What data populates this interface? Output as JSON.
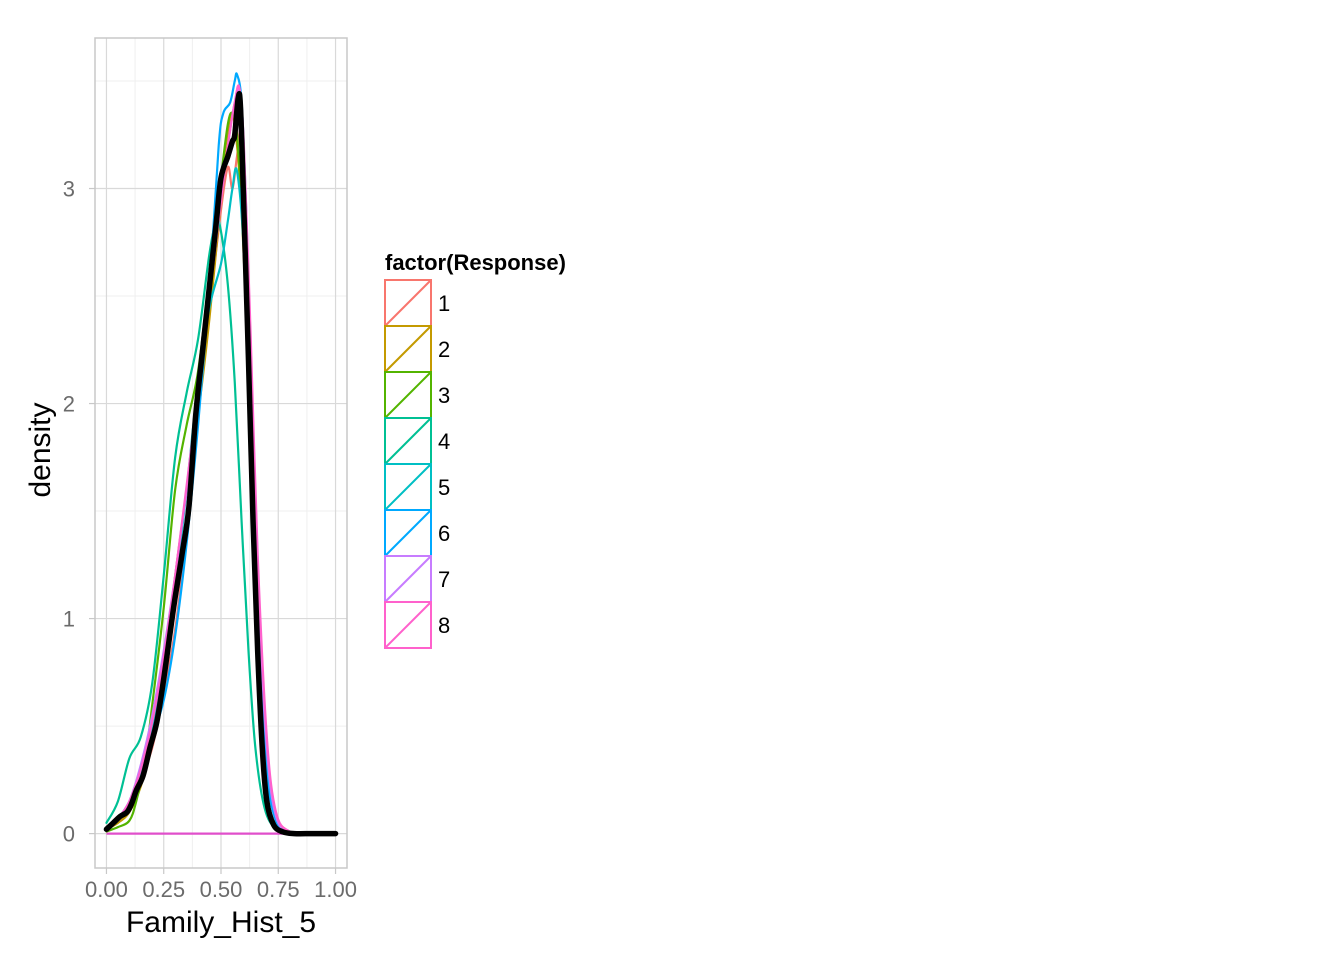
{
  "chart_data": {
    "type": "line",
    "title": "",
    "xlabel": "Family_Hist_5",
    "ylabel": "density",
    "xlim": [
      -0.05,
      1.05
    ],
    "ylim": [
      -0.16,
      3.7
    ],
    "x_ticks": [
      {
        "value": 0.0,
        "label": "0.00"
      },
      {
        "value": 0.25,
        "label": "0.25"
      },
      {
        "value": 0.5,
        "label": "0.50"
      },
      {
        "value": 0.75,
        "label": "0.75"
      },
      {
        "value": 1.0,
        "label": "1.00"
      }
    ],
    "y_ticks": [
      {
        "value": 0,
        "label": "0"
      },
      {
        "value": 1,
        "label": "1"
      },
      {
        "value": 2,
        "label": "2"
      },
      {
        "value": 3,
        "label": "3"
      }
    ],
    "grid": true,
    "legend": {
      "title": "factor(Response)",
      "placement": "right"
    },
    "series": [
      {
        "name": "1",
        "color": "#F8766D",
        "width": 2.2,
        "points": [
          [
            0.0,
            0.02
          ],
          [
            0.05,
            0.06
          ],
          [
            0.1,
            0.12
          ],
          [
            0.15,
            0.25
          ],
          [
            0.2,
            0.4
          ],
          [
            0.25,
            0.65
          ],
          [
            0.3,
            0.95
          ],
          [
            0.35,
            1.4
          ],
          [
            0.4,
            1.95
          ],
          [
            0.45,
            2.45
          ],
          [
            0.5,
            2.9
          ],
          [
            0.53,
            3.1
          ],
          [
            0.55,
            3.0
          ],
          [
            0.57,
            3.15
          ],
          [
            0.59,
            3.25
          ],
          [
            0.61,
            2.6
          ],
          [
            0.64,
            1.7
          ],
          [
            0.67,
            0.9
          ],
          [
            0.7,
            0.3
          ],
          [
            0.74,
            0.06
          ],
          [
            0.8,
            0.005
          ],
          [
            0.9,
            0.0
          ],
          [
            1.0,
            0.0
          ]
        ]
      },
      {
        "name": "2",
        "color": "#C49A00",
        "width": 2.2,
        "points": [
          [
            0.0,
            0.02
          ],
          [
            0.05,
            0.05
          ],
          [
            0.1,
            0.1
          ],
          [
            0.15,
            0.22
          ],
          [
            0.2,
            0.42
          ],
          [
            0.25,
            0.75
          ],
          [
            0.3,
            1.2
          ],
          [
            0.35,
            1.6
          ],
          [
            0.4,
            1.95
          ],
          [
            0.45,
            2.4
          ],
          [
            0.5,
            2.95
          ],
          [
            0.53,
            3.25
          ],
          [
            0.55,
            3.35
          ],
          [
            0.57,
            3.2
          ],
          [
            0.59,
            2.9
          ],
          [
            0.62,
            2.2
          ],
          [
            0.65,
            1.3
          ],
          [
            0.68,
            0.6
          ],
          [
            0.72,
            0.15
          ],
          [
            0.78,
            0.02
          ],
          [
            0.9,
            0.0
          ],
          [
            1.0,
            0.0
          ]
        ]
      },
      {
        "name": "3",
        "color": "#53B400",
        "width": 2.2,
        "points": [
          [
            0.0,
            0.01
          ],
          [
            0.05,
            0.03
          ],
          [
            0.1,
            0.06
          ],
          [
            0.13,
            0.15
          ],
          [
            0.17,
            0.35
          ],
          [
            0.2,
            0.6
          ],
          [
            0.25,
            1.05
          ],
          [
            0.3,
            1.6
          ],
          [
            0.35,
            1.9
          ],
          [
            0.4,
            2.15
          ],
          [
            0.45,
            2.6
          ],
          [
            0.5,
            3.05
          ],
          [
            0.53,
            3.3
          ],
          [
            0.55,
            3.35
          ],
          [
            0.57,
            3.25
          ],
          [
            0.6,
            2.7
          ],
          [
            0.63,
            1.8
          ],
          [
            0.66,
            1.0
          ],
          [
            0.7,
            0.35
          ],
          [
            0.74,
            0.08
          ],
          [
            0.8,
            0.01
          ],
          [
            0.9,
            0.0
          ],
          [
            1.0,
            0.0
          ]
        ]
      },
      {
        "name": "4",
        "color": "#00B6EB",
        "width": 0,
        "points": []
      },
      {
        "name": "4",
        "color": "#00C094",
        "width": 2.2,
        "points": [
          [
            0.0,
            0.05
          ],
          [
            0.05,
            0.15
          ],
          [
            0.1,
            0.35
          ],
          [
            0.15,
            0.45
          ],
          [
            0.2,
            0.7
          ],
          [
            0.25,
            1.2
          ],
          [
            0.3,
            1.75
          ],
          [
            0.35,
            2.05
          ],
          [
            0.4,
            2.3
          ],
          [
            0.45,
            2.7
          ],
          [
            0.48,
            2.85
          ],
          [
            0.5,
            2.8
          ],
          [
            0.53,
            2.55
          ],
          [
            0.56,
            2.1
          ],
          [
            0.59,
            1.45
          ],
          [
            0.62,
            0.85
          ],
          [
            0.65,
            0.4
          ],
          [
            0.69,
            0.12
          ],
          [
            0.74,
            0.02
          ],
          [
            0.8,
            0.0
          ],
          [
            0.9,
            0.0
          ],
          [
            1.0,
            0.0
          ]
        ]
      },
      {
        "name": "5",
        "color": "#00BFC4",
        "width": 2.2,
        "points": [
          [
            0.0,
            0.02
          ],
          [
            0.05,
            0.06
          ],
          [
            0.1,
            0.14
          ],
          [
            0.15,
            0.28
          ],
          [
            0.2,
            0.5
          ],
          [
            0.25,
            0.8
          ],
          [
            0.3,
            1.15
          ],
          [
            0.35,
            1.6
          ],
          [
            0.4,
            2.1
          ],
          [
            0.45,
            2.45
          ],
          [
            0.5,
            2.65
          ],
          [
            0.53,
            2.85
          ],
          [
            0.55,
            3.0
          ],
          [
            0.57,
            3.08
          ],
          [
            0.6,
            2.7
          ],
          [
            0.63,
            1.8
          ],
          [
            0.66,
            0.95
          ],
          [
            0.7,
            0.35
          ],
          [
            0.74,
            0.08
          ],
          [
            0.8,
            0.01
          ],
          [
            0.9,
            0.0
          ],
          [
            1.0,
            0.0
          ]
        ]
      },
      {
        "name": "6",
        "color": "#00A9FF",
        "width": 2.2,
        "points": [
          [
            0.0,
            0.02
          ],
          [
            0.05,
            0.07
          ],
          [
            0.1,
            0.15
          ],
          [
            0.15,
            0.3
          ],
          [
            0.2,
            0.45
          ],
          [
            0.25,
            0.62
          ],
          [
            0.3,
            0.92
          ],
          [
            0.35,
            1.35
          ],
          [
            0.4,
            1.9
          ],
          [
            0.45,
            2.55
          ],
          [
            0.49,
            3.2
          ],
          [
            0.51,
            3.35
          ],
          [
            0.54,
            3.4
          ],
          [
            0.56,
            3.5
          ],
          [
            0.57,
            3.53
          ],
          [
            0.59,
            3.4
          ],
          [
            0.61,
            2.9
          ],
          [
            0.64,
            1.9
          ],
          [
            0.67,
            0.95
          ],
          [
            0.7,
            0.3
          ],
          [
            0.74,
            0.06
          ],
          [
            0.8,
            0.005
          ],
          [
            0.9,
            0.0
          ],
          [
            1.0,
            0.0
          ]
        ]
      },
      {
        "name": "7",
        "color": "#C77CFF",
        "width": 2.2,
        "points": [
          [
            0.0,
            0.02
          ],
          [
            0.05,
            0.07
          ],
          [
            0.1,
            0.15
          ],
          [
            0.15,
            0.32
          ],
          [
            0.2,
            0.55
          ],
          [
            0.25,
            0.85
          ],
          [
            0.3,
            1.2
          ],
          [
            0.35,
            1.6
          ],
          [
            0.4,
            2.05
          ],
          [
            0.45,
            2.5
          ],
          [
            0.5,
            2.95
          ],
          [
            0.53,
            3.2
          ],
          [
            0.56,
            3.4
          ],
          [
            0.58,
            3.45
          ],
          [
            0.6,
            3.1
          ],
          [
            0.63,
            2.15
          ],
          [
            0.66,
            1.2
          ],
          [
            0.7,
            0.4
          ],
          [
            0.74,
            0.08
          ],
          [
            0.8,
            0.01
          ],
          [
            0.9,
            0.0
          ],
          [
            1.0,
            0.0
          ]
        ]
      },
      {
        "name": "8",
        "color": "#FF61CC",
        "width": 2.2,
        "points": [
          [
            0.0,
            0.02
          ],
          [
            0.05,
            0.07
          ],
          [
            0.1,
            0.15
          ],
          [
            0.15,
            0.3
          ],
          [
            0.2,
            0.52
          ],
          [
            0.25,
            0.82
          ],
          [
            0.3,
            1.2
          ],
          [
            0.35,
            1.62
          ],
          [
            0.4,
            2.05
          ],
          [
            0.45,
            2.5
          ],
          [
            0.5,
            2.95
          ],
          [
            0.53,
            3.2
          ],
          [
            0.56,
            3.4
          ],
          [
            0.58,
            3.47
          ],
          [
            0.6,
            3.2
          ],
          [
            0.63,
            2.3
          ],
          [
            0.66,
            1.3
          ],
          [
            0.7,
            0.45
          ],
          [
            0.74,
            0.1
          ],
          [
            0.8,
            0.01
          ],
          [
            0.9,
            0.0
          ],
          [
            1.0,
            0.0
          ]
        ]
      },
      {
        "name": "",
        "color": "#000000",
        "width": 5.5,
        "points": [
          [
            0.0,
            0.02
          ],
          [
            0.03,
            0.05
          ],
          [
            0.06,
            0.08
          ],
          [
            0.09,
            0.1
          ],
          [
            0.11,
            0.14
          ],
          [
            0.13,
            0.2
          ],
          [
            0.16,
            0.27
          ],
          [
            0.19,
            0.4
          ],
          [
            0.22,
            0.52
          ],
          [
            0.25,
            0.72
          ],
          [
            0.28,
            0.95
          ],
          [
            0.3,
            1.1
          ],
          [
            0.33,
            1.3
          ],
          [
            0.36,
            1.52
          ],
          [
            0.39,
            1.95
          ],
          [
            0.42,
            2.25
          ],
          [
            0.45,
            2.55
          ],
          [
            0.48,
            2.85
          ],
          [
            0.5,
            3.05
          ],
          [
            0.53,
            3.15
          ],
          [
            0.55,
            3.22
          ],
          [
            0.56,
            3.25
          ],
          [
            0.575,
            3.42
          ],
          [
            0.585,
            3.38
          ],
          [
            0.6,
            2.9
          ],
          [
            0.62,
            2.2
          ],
          [
            0.64,
            1.45
          ],
          [
            0.66,
            0.85
          ],
          [
            0.68,
            0.4
          ],
          [
            0.7,
            0.15
          ],
          [
            0.73,
            0.04
          ],
          [
            0.77,
            0.008
          ],
          [
            0.82,
            0.0
          ],
          [
            0.9,
            0.0
          ],
          [
            1.0,
            0.0
          ]
        ]
      }
    ],
    "baseline": {
      "color": "#E04FCB",
      "y": 0,
      "x_range": [
        0.0,
        0.8
      ]
    }
  }
}
